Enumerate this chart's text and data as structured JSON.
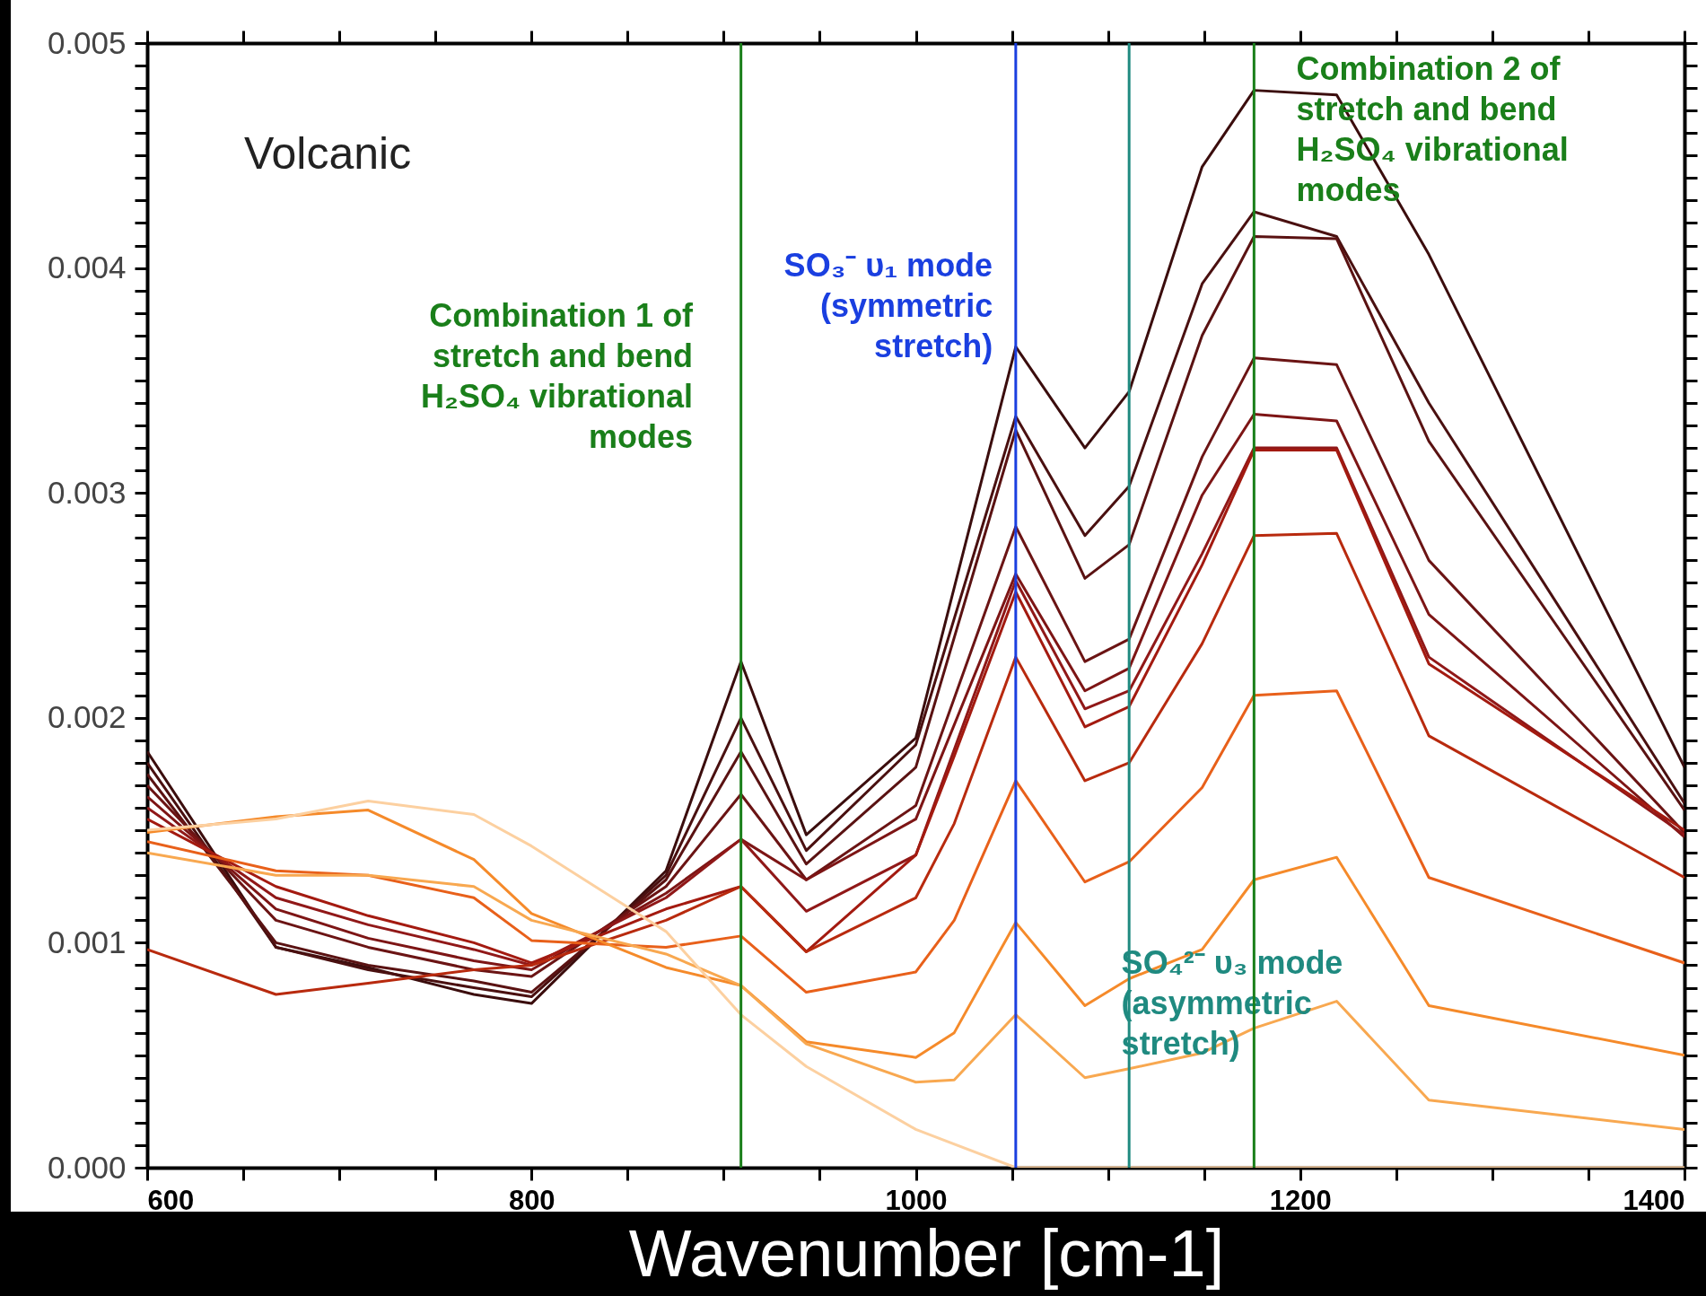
{
  "chart_data": {
    "type": "line",
    "xlabel": "Wavenumber [cm-1]",
    "annotations": [
      "Volcanic"
    ],
    "marker": "none",
    "line_style": "solid",
    "grid": false,
    "legend": false,
    "xlim": [
      600,
      1400
    ],
    "ylim": [
      0,
      0.005
    ],
    "xticks": [
      600,
      {
        "value": 650,
        "label": null
      },
      {
        "value": 700,
        "label": null
      },
      {
        "value": 750,
        "label": null
      },
      800,
      {
        "value": 850,
        "label": null
      },
      {
        "value": 900,
        "label": null
      },
      {
        "value": 950,
        "label": null
      },
      1000,
      {
        "value": 1050,
        "label": null
      },
      {
        "value": 1100,
        "label": null
      },
      {
        "value": 1150,
        "label": null
      },
      1200,
      {
        "value": 1250,
        "label": null
      },
      {
        "value": 1300,
        "label": null
      },
      {
        "value": 1350,
        "label": null
      },
      1400
    ],
    "yticks": [
      {
        "value": 0,
        "label": "0.000"
      },
      {
        "value": 0.0001,
        "label": null
      },
      {
        "value": 0.0002,
        "label": null
      },
      {
        "value": 0.0003,
        "label": null
      },
      {
        "value": 0.0004,
        "label": null
      },
      {
        "value": 0.0005,
        "label": null
      },
      {
        "value": 0.0006,
        "label": null
      },
      {
        "value": 0.0007,
        "label": null
      },
      {
        "value": 0.0008,
        "label": null
      },
      {
        "value": 0.0009,
        "label": null
      },
      0.001,
      {
        "value": 0.0011,
        "label": null
      },
      {
        "value": 0.0012,
        "label": null
      },
      {
        "value": 0.0013,
        "label": null
      },
      {
        "value": 0.0014,
        "label": null
      },
      {
        "value": 0.0015,
        "label": null
      },
      {
        "value": 0.0016,
        "label": null
      },
      {
        "value": 0.0017,
        "label": null
      },
      {
        "value": 0.0018,
        "label": null
      },
      {
        "value": 0.0019,
        "label": null
      },
      0.002,
      {
        "value": 0.0021,
        "label": null
      },
      {
        "value": 0.0022,
        "label": null
      },
      {
        "value": 0.0023,
        "label": null
      },
      {
        "value": 0.0024,
        "label": null
      },
      {
        "value": 0.0025,
        "label": null
      },
      {
        "value": 0.0026,
        "label": null
      },
      {
        "value": 0.0027,
        "label": null
      },
      {
        "value": 0.0028,
        "label": null
      },
      {
        "value": 0.0029,
        "label": null
      },
      0.003,
      {
        "value": 0.0031,
        "label": null
      },
      {
        "value": 0.0032,
        "label": null
      },
      {
        "value": 0.0033,
        "label": null
      },
      {
        "value": 0.0034,
        "label": null
      },
      {
        "value": 0.0035,
        "label": null
      },
      {
        "value": 0.0036,
        "label": null
      },
      {
        "value": 0.0037,
        "label": null
      },
      {
        "value": 0.0038,
        "label": null
      },
      {
        "value": 0.0039,
        "label": null
      },
      0.004,
      {
        "value": 0.0041,
        "label": null
      },
      {
        "value": 0.0042,
        "label": null
      },
      {
        "value": 0.0043,
        "label": null
      },
      {
        "value": 0.0044,
        "label": null
      },
      {
        "value": 0.0045,
        "label": null
      },
      {
        "value": 0.0046,
        "label": null
      },
      {
        "value": 0.0047,
        "label": null
      },
      {
        "value": 0.0048,
        "label": null
      },
      {
        "value": 0.0049,
        "label": null
      },
      0.005
    ],
    "series": [
      {
        "color": "#3b0d0d",
        "x": [
          600,
          667,
          715,
          770,
          800,
          870,
          909,
          943,
          1000,
          1052,
          1088,
          1111,
          1149,
          1176,
          1219,
          1267,
          1400
        ],
        "values": [
          0.00185,
          0.00098,
          0.00089,
          0.00077,
          0.00073,
          0.00132,
          0.00225,
          0.00148,
          0.00191,
          0.00365,
          0.0032,
          0.00345,
          0.00445,
          0.00479,
          0.00477,
          0.00406,
          0.00178
        ]
      },
      {
        "color": "#4a1010",
        "x": [
          600,
          667,
          715,
          770,
          800,
          870,
          909,
          943,
          1000,
          1052,
          1088,
          1111,
          1149,
          1176,
          1219,
          1267,
          1400
        ],
        "values": [
          0.0018,
          0.00098,
          0.00088,
          0.0008,
          0.00076,
          0.0013,
          0.002,
          0.00141,
          0.00188,
          0.00334,
          0.00281,
          0.00303,
          0.00393,
          0.00425,
          0.00414,
          0.0034,
          0.00162
        ]
      },
      {
        "color": "#5a1212",
        "x": [
          600,
          667,
          715,
          770,
          800,
          870,
          909,
          943,
          1000,
          1052,
          1088,
          1111,
          1149,
          1176,
          1219,
          1267,
          1400
        ],
        "values": [
          0.00175,
          0.001,
          0.0009,
          0.00083,
          0.00078,
          0.00128,
          0.00185,
          0.00135,
          0.00178,
          0.00328,
          0.00262,
          0.00277,
          0.0037,
          0.00414,
          0.00413,
          0.00323,
          0.00159
        ]
      },
      {
        "color": "#6b1414",
        "x": [
          600,
          667,
          715,
          770,
          800,
          870,
          909,
          943,
          1000,
          1052,
          1088,
          1111,
          1149,
          1176,
          1219,
          1267,
          1400
        ],
        "values": [
          0.0017,
          0.0011,
          0.00098,
          0.00088,
          0.00085,
          0.00125,
          0.00166,
          0.00128,
          0.00161,
          0.00285,
          0.00225,
          0.00235,
          0.00316,
          0.0036,
          0.00357,
          0.0027,
          0.00149
        ]
      },
      {
        "color": "#7d1515",
        "x": [
          600,
          667,
          715,
          770,
          800,
          870,
          909,
          943,
          1000,
          1052,
          1088,
          1111,
          1149,
          1176,
          1219,
          1267,
          1400
        ],
        "values": [
          0.00165,
          0.00115,
          0.00102,
          0.00092,
          0.00088,
          0.00122,
          0.00146,
          0.00128,
          0.00155,
          0.00264,
          0.00212,
          0.00222,
          0.00299,
          0.00335,
          0.00332,
          0.00246,
          0.00147
        ]
      },
      {
        "color": "#901818",
        "x": [
          600,
          667,
          715,
          770,
          800,
          870,
          909,
          943,
          1000,
          1052,
          1088,
          1111,
          1149,
          1176,
          1219,
          1267,
          1400
        ],
        "values": [
          0.0016,
          0.0012,
          0.00108,
          0.00097,
          0.0009,
          0.0012,
          0.00146,
          0.00114,
          0.00139,
          0.00261,
          0.00204,
          0.00212,
          0.00273,
          0.0032,
          0.0032,
          0.00227,
          0.00148
        ]
      },
      {
        "color": "#a31a10",
        "x": [
          600,
          667,
          715,
          770,
          800,
          870,
          909,
          943,
          1000,
          1020,
          1052,
          1088,
          1111,
          1149,
          1176,
          1219,
          1267,
          1400
        ],
        "values": [
          0.00155,
          0.00125,
          0.00112,
          0.001,
          0.00091,
          0.00115,
          0.00125,
          0.00096,
          0.00139,
          0.00183,
          0.00256,
          0.00196,
          0.00205,
          0.00268,
          0.00319,
          0.00319,
          0.00224,
          0.0015
        ]
      },
      {
        "color": "#b82a0e",
        "x": [
          600,
          667,
          715,
          770,
          800,
          870,
          909,
          943,
          1000,
          1020,
          1052,
          1088,
          1111,
          1149,
          1176,
          1219,
          1267,
          1400
        ],
        "values": [
          0.00097,
          0.00077,
          0.00082,
          0.00088,
          0.0009,
          0.0011,
          0.00125,
          0.00096,
          0.0012,
          0.00153,
          0.00227,
          0.00172,
          0.0018,
          0.00233,
          0.00281,
          0.00282,
          0.00192,
          0.00129
        ]
      },
      {
        "color": "#e8601a",
        "x": [
          600,
          667,
          715,
          770,
          800,
          870,
          909,
          943,
          1000,
          1020,
          1052,
          1088,
          1111,
          1149,
          1176,
          1219,
          1267,
          1400
        ],
        "values": [
          0.00145,
          0.00132,
          0.0013,
          0.0012,
          0.00101,
          0.00098,
          0.00103,
          0.00078,
          0.00087,
          0.0011,
          0.00172,
          0.00127,
          0.00136,
          0.00169,
          0.0021,
          0.00212,
          0.00129,
          0.00091
        ]
      },
      {
        "color": "#f58a2a",
        "x": [
          600,
          667,
          715,
          770,
          800,
          870,
          909,
          943,
          1000,
          1020,
          1052,
          1088,
          1111,
          1149,
          1176,
          1219,
          1267,
          1400
        ],
        "values": [
          0.00149,
          0.00156,
          0.00159,
          0.00137,
          0.00113,
          0.00089,
          0.00081,
          0.00056,
          0.00049,
          0.0006,
          0.00109,
          0.00072,
          0.00084,
          0.00097,
          0.00128,
          0.00138,
          0.00072,
          0.0005
        ]
      },
      {
        "color": "#f8a850",
        "x": [
          600,
          667,
          715,
          770,
          800,
          870,
          909,
          943,
          1000,
          1020,
          1052,
          1088,
          1111,
          1149,
          1176,
          1219,
          1267,
          1400
        ],
        "values": [
          0.0014,
          0.0013,
          0.0013,
          0.00125,
          0.0011,
          0.00095,
          0.00081,
          0.00055,
          0.00038,
          0.00039,
          0.00068,
          0.0004,
          0.00044,
          0.00051,
          0.00062,
          0.00074,
          0.0003,
          0.00017
        ]
      },
      {
        "color": "#fcd0a0",
        "x": [
          600,
          667,
          715,
          770,
          800,
          870,
          909,
          943,
          1000,
          1052,
          1088,
          1400
        ],
        "values": [
          0.0015,
          0.00155,
          0.00163,
          0.00157,
          0.00143,
          0.00105,
          0.00068,
          0.00045,
          0.00017,
          0,
          0,
          0
        ]
      }
    ],
    "ref_lines": [
      {
        "axis": "x",
        "value": 909,
        "color": "#1a7f1a",
        "label": "Combination 1 of\nstretch and bend\nH₂SO₄ vibrational\nmodes"
      },
      {
        "axis": "x",
        "value": 1052,
        "color": "#1a3fe0",
        "label": "SO₃⁻ υ₁ mode\n(symmetric\nstretch)"
      },
      {
        "axis": "x",
        "value": 1111,
        "color": "#1f8a80",
        "label": "SO₄²⁻ υ₃ mode\n(asymmetric\nstretch)"
      },
      {
        "axis": "x",
        "value": 1176,
        "color": "#1a7f1a",
        "label": "Combination 2 of\nstretch and bend\nH₂SO₄ vibrational\nmodes"
      }
    ]
  }
}
